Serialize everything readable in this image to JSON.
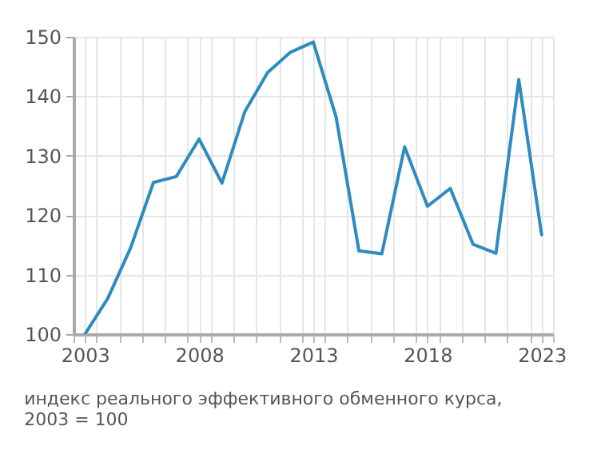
{
  "chart_data": {
    "type": "line",
    "x": [
      2003,
      2004,
      2005,
      2006,
      2007,
      2008,
      2009,
      2010,
      2011,
      2012,
      2013,
      2014,
      2015,
      2016,
      2017,
      2018,
      2019,
      2020,
      2021,
      2022,
      2023
    ],
    "series": [
      {
        "color": "#2e8bc0",
        "values": [
          100,
          106,
          114.5,
          125.5,
          126.5,
          132.8,
          125.4,
          137.4,
          144,
          147.4,
          149.1,
          136.5,
          114,
          113.5,
          131.5,
          121.5,
          124.5,
          115.1,
          113.6,
          142.8,
          116.7
        ]
      }
    ],
    "xlim": [
      2002.5,
      2023.5
    ],
    "xticks": [
      2003,
      2008,
      2013,
      2018,
      2023,
      {
        "value": 2002.5,
        "label": null
      },
      {
        "value": 2003.5,
        "label": null
      },
      {
        "value": 2004.5,
        "label": null
      },
      {
        "value": 2005.5,
        "label": null
      },
      {
        "value": 2006.5,
        "label": null
      },
      {
        "value": 2007.5,
        "label": null
      },
      {
        "value": 2008.5,
        "label": null
      },
      {
        "value": 2009.5,
        "label": null
      },
      {
        "value": 2010.5,
        "label": null
      },
      {
        "value": 2011.5,
        "label": null
      },
      {
        "value": 2012.5,
        "label": null
      },
      {
        "value": 2013.5,
        "label": null
      },
      {
        "value": 2014.5,
        "label": null
      },
      {
        "value": 2015.5,
        "label": null
      },
      {
        "value": 2016.5,
        "label": null
      },
      {
        "value": 2017.5,
        "label": null
      },
      {
        "value": 2018.5,
        "label": null
      },
      {
        "value": 2019.5,
        "label": null
      },
      {
        "value": 2020.5,
        "label": null
      },
      {
        "value": 2021.5,
        "label": null
      },
      {
        "value": 2022.5,
        "label": null
      },
      {
        "value": 2023.5,
        "label": null
      }
    ],
    "ylim": [
      100,
      150
    ],
    "yticks": [
      100,
      110,
      120,
      130,
      140,
      150
    ],
    "grid": true,
    "marker": "none",
    "line_style": "solid",
    "annotations": [
      "индекс реального эффективного обменного курса,\n2003 = 100"
    ]
  }
}
